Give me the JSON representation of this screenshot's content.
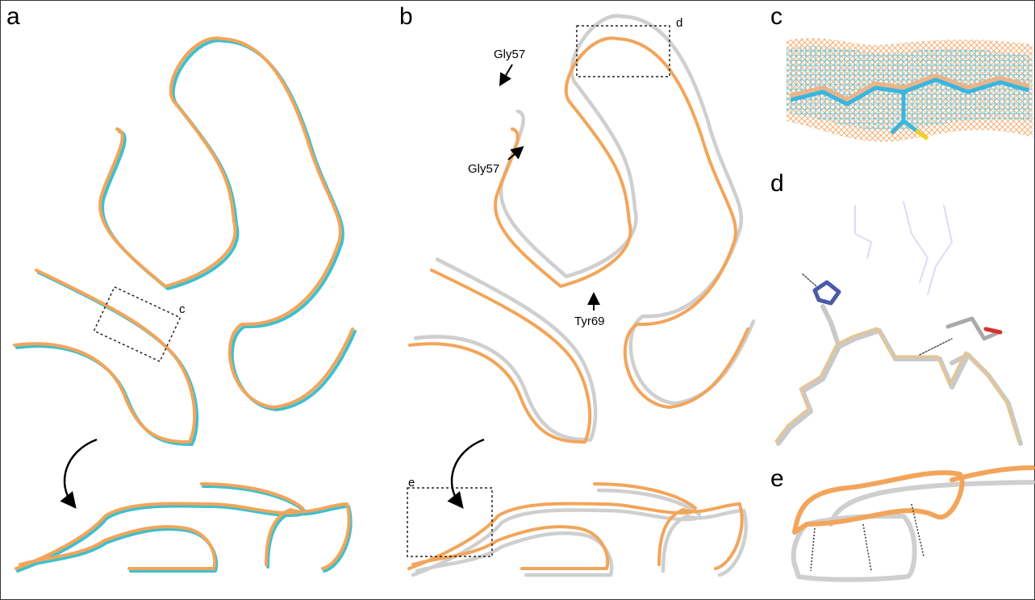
{
  "panels": [
    {
      "label": "a"
    },
    {
      "label": "b"
    },
    {
      "label": "c"
    },
    {
      "label": "d"
    },
    {
      "label": "e"
    }
  ],
  "annotations": [
    {
      "label": "c"
    },
    {
      "label": "Gly57"
    },
    {
      "label": "Gly57"
    },
    {
      "label": "Tyr69"
    },
    {
      "label": "d"
    },
    {
      "label": "e"
    }
  ]
}
